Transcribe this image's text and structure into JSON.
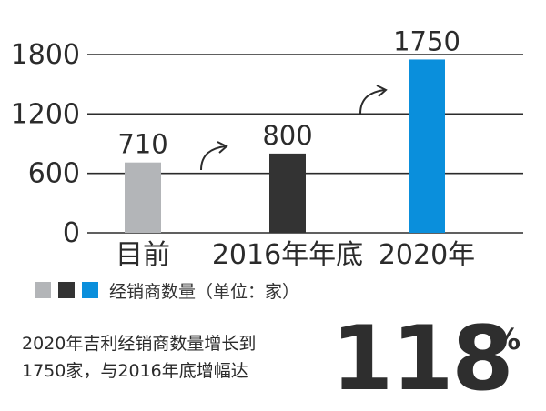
{
  "chart_data": {
    "type": "bar",
    "categories": [
      "目前",
      "2016年年底",
      "2020年"
    ],
    "values": [
      710,
      800,
      1750
    ],
    "colors": [
      "#b3b5b8",
      "#333333",
      "#0a8fdc"
    ],
    "yticks": [
      0,
      600,
      1200,
      1800
    ],
    "ylim": [
      0,
      1800
    ],
    "grid": true,
    "legend": {
      "label": "经销商数量（单位：家）",
      "placement": "bottom-left"
    }
  },
  "caption": {
    "line1": "2020年吉利经销商数量增长到",
    "line2": "1750家，与2016年底增幅达"
  },
  "highlight": {
    "value": "118",
    "unit": "%"
  }
}
